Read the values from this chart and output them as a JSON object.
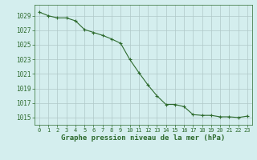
{
  "x": [
    0,
    1,
    2,
    3,
    4,
    5,
    6,
    7,
    8,
    9,
    10,
    11,
    12,
    13,
    14,
    15,
    16,
    17,
    18,
    19,
    20,
    21,
    22,
    23
  ],
  "y": [
    1029.5,
    1029.0,
    1028.7,
    1028.7,
    1028.3,
    1027.1,
    1026.7,
    1026.3,
    1025.8,
    1025.2,
    1023.0,
    1021.2,
    1019.5,
    1018.0,
    1016.8,
    1016.8,
    1016.5,
    1015.4,
    1015.3,
    1015.3,
    1015.1,
    1015.1,
    1015.0,
    1015.2
  ],
  "line_color": "#2d6a2d",
  "marker_color": "#2d6a2d",
  "bg_color": "#d4eeee",
  "grid_color": "#b0c8c8",
  "xlabel": "Graphe pression niveau de la mer (hPa)",
  "xlabel_color": "#2d6a2d",
  "tick_color": "#2d6a2d",
  "ylim": [
    1014.0,
    1030.5
  ],
  "yticks": [
    1015,
    1017,
    1019,
    1021,
    1023,
    1025,
    1027,
    1029
  ],
  "xlim": [
    -0.5,
    23.5
  ],
  "xticks": [
    0,
    1,
    2,
    3,
    4,
    5,
    6,
    7,
    8,
    9,
    10,
    11,
    12,
    13,
    14,
    15,
    16,
    17,
    18,
    19,
    20,
    21,
    22,
    23
  ],
  "xtick_labels": [
    "0",
    "1",
    "2",
    "3",
    "4",
    "5",
    "6",
    "7",
    "8",
    "9",
    "10",
    "11",
    "12",
    "13",
    "14",
    "15",
    "16",
    "17",
    "18",
    "19",
    "20",
    "21",
    "22",
    "23"
  ]
}
